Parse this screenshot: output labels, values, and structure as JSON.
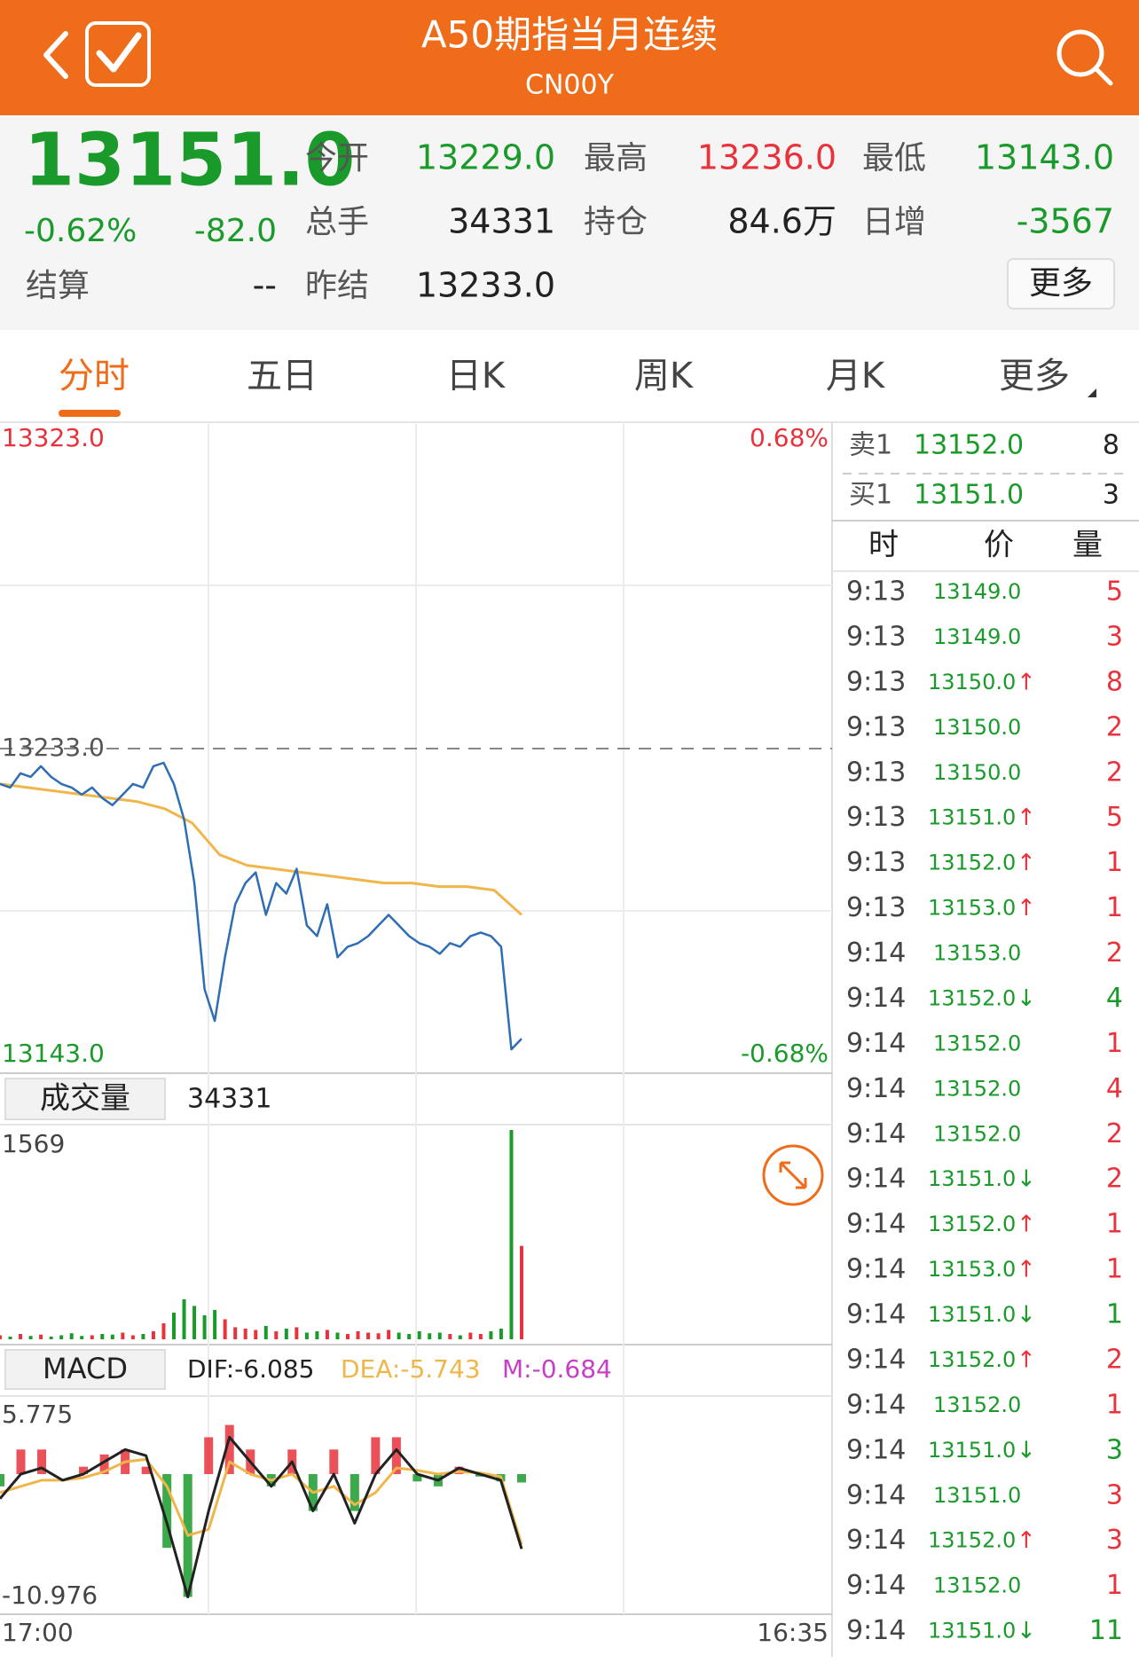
{
  "header": {
    "title": "A50期指当月连续",
    "code": "CN00Y"
  },
  "quote": {
    "price": "13151.0",
    "change_pct": "-0.62%",
    "change": "-82.0",
    "fields": [
      {
        "label": "今开",
        "value": "13229.0",
        "color": "#1a9a2a"
      },
      {
        "label": "最高",
        "value": "13236.0",
        "color": "#e8323c"
      },
      {
        "label": "最低",
        "value": "13143.0",
        "color": "#1a9a2a"
      },
      {
        "label": "总手",
        "value": "34331",
        "color": "#222222"
      },
      {
        "label": "持仓",
        "value": "84.6万",
        "color": "#222222"
      },
      {
        "label": "日增",
        "value": "-3567",
        "color": "#1a9a2a"
      },
      {
        "label": "结算",
        "value": "--",
        "color": "#222222"
      },
      {
        "label": "昨结",
        "value": "13233.0",
        "color": "#222222"
      }
    ],
    "more": "更多"
  },
  "tabs": [
    "分时",
    "五日",
    "日K",
    "周K",
    "月K",
    "更多"
  ],
  "order_book": [
    {
      "label": "卖1",
      "price": "13152.0",
      "volume": "8"
    },
    {
      "label": "买1",
      "price": "13151.0",
      "volume": "3"
    }
  ],
  "trades": {
    "headers": [
      "时",
      "价",
      "量"
    ],
    "rows": [
      {
        "time": "9:13",
        "price": "13149.0",
        "volume": "5",
        "color": "#e8323c"
      },
      {
        "time": "9:13",
        "price": "13149.0",
        "volume": "3",
        "color": "#e8323c"
      },
      {
        "time": "9:13",
        "price": "13150.0",
        "arrow": "↑",
        "volume": "8",
        "color": "#e8323c"
      },
      {
        "time": "9:13",
        "price": "13150.0",
        "volume": "2",
        "color": "#e8323c"
      },
      {
        "time": "9:13",
        "price": "13150.0",
        "volume": "2",
        "color": "#e8323c"
      },
      {
        "time": "9:13",
        "price": "13151.0",
        "arrow": "↑",
        "volume": "5",
        "color": "#e8323c"
      },
      {
        "time": "9:13",
        "price": "13152.0",
        "arrow": "↑",
        "volume": "1",
        "color": "#e8323c"
      },
      {
        "time": "9:13",
        "price": "13153.0",
        "arrow": "↑",
        "volume": "1",
        "color": "#e8323c"
      },
      {
        "time": "9:14",
        "price": "13153.0",
        "volume": "2",
        "color": "#e8323c"
      },
      {
        "time": "9:14",
        "price": "13152.0",
        "arrow": "↓",
        "volume": "4",
        "color": "#1a9a2a"
      },
      {
        "time": "9:14",
        "price": "13152.0",
        "volume": "1",
        "color": "#e8323c"
      },
      {
        "time": "9:14",
        "price": "13152.0",
        "volume": "4",
        "color": "#e8323c"
      },
      {
        "time": "9:14",
        "price": "13152.0",
        "volume": "2",
        "color": "#e8323c"
      },
      {
        "time": "9:14",
        "price": "13151.0",
        "arrow": "↓",
        "volume": "2",
        "color": "#e8323c"
      },
      {
        "time": "9:14",
        "price": "13152.0",
        "arrow": "↑",
        "volume": "1",
        "color": "#e8323c"
      },
      {
        "time": "9:14",
        "price": "13153.0",
        "arrow": "↑",
        "volume": "1",
        "color": "#e8323c"
      },
      {
        "time": "9:14",
        "price": "13151.0",
        "arrow": "↓",
        "volume": "1",
        "color": "#1a9a2a"
      },
      {
        "time": "9:14",
        "price": "13152.0",
        "arrow": "↑",
        "volume": "2",
        "color": "#e8323c"
      },
      {
        "time": "9:14",
        "price": "13152.0",
        "volume": "1",
        "color": "#e8323c"
      },
      {
        "time": "9:14",
        "price": "13151.0",
        "arrow": "↓",
        "volume": "3",
        "color": "#1a9a2a"
      },
      {
        "time": "9:14",
        "price": "13151.0",
        "volume": "3",
        "color": "#e8323c"
      },
      {
        "time": "9:14",
        "price": "13152.0",
        "arrow": "↑",
        "volume": "3",
        "color": "#e8323c"
      },
      {
        "time": "9:14",
        "price": "13152.0",
        "volume": "1",
        "color": "#e8323c"
      },
      {
        "time": "9:14",
        "price": "13151.0",
        "arrow": "↓",
        "volume": "11",
        "color": "#1a9a2a"
      }
    ]
  },
  "chart_data": [
    {
      "type": "line",
      "ylim": [
        13143,
        13323
      ],
      "yticks": [
        {
          "value": 13143,
          "label": "13143.0"
        },
        {
          "value": 13233,
          "label": "13233.0"
        },
        {
          "value": 13323,
          "label": "13323.0"
        }
      ],
      "y2lim": [
        -0.68,
        0.68
      ],
      "y2ticks": [
        {
          "value": -0.68,
          "label": "-0.68%"
        },
        {
          "value": 0.68,
          "label": "0.68%"
        }
      ],
      "xticks": [
        "17:00",
        "16:35"
      ],
      "series": [
        {
          "color": "#2f6db5",
          "values": [
            13223,
            13222,
            13226,
            13225,
            13228,
            13225,
            13223,
            13222,
            13220,
            13222,
            13219,
            13217,
            13220,
            13223,
            13222,
            13228,
            13229,
            13223,
            13213,
            13195,
            13165,
            13156,
            13174,
            13189,
            13195,
            13198,
            13186,
            13195,
            13192,
            13199,
            13183,
            13180,
            13189,
            13174,
            13177,
            13178,
            13180,
            13183,
            13186,
            13183,
            13180,
            13178,
            13177,
            13175,
            13178,
            13177,
            13180,
            13181,
            13180,
            13177,
            13148,
            13151
          ]
        },
        {
          "color": "#f0b64a",
          "values": [
            13223,
            13222,
            13221,
            13220,
            13219,
            13218,
            13216,
            13212,
            13203,
            13200,
            13199,
            13198,
            13197,
            13196,
            13195,
            13195,
            13194,
            13194,
            13193,
            13186
          ]
        }
      ]
    },
    {
      "type": "bar",
      "title": "成交量",
      "total": 34331,
      "ylim": [
        0,
        1569
      ],
      "yticks": [
        1569
      ],
      "up_color": "#e8323c",
      "down_color": "#1a9a2a",
      "values": [
        30,
        20,
        40,
        25,
        35,
        20,
        30,
        45,
        25,
        30,
        40,
        35,
        50,
        30,
        40,
        60,
        120,
        200,
        300,
        250,
        180,
        220,
        150,
        90,
        80,
        70,
        100,
        60,
        80,
        90,
        50,
        60,
        70,
        50,
        40,
        60,
        50,
        45,
        70,
        50,
        40,
        60,
        45,
        50,
        40,
        30,
        50,
        40,
        60,
        80,
        1569,
        700
      ]
    },
    {
      "type": "macd",
      "title": "MACD",
      "ylim": [
        -10.976,
        5.775
      ],
      "yticks": [
        5.775,
        -10.976
      ],
      "series": [
        {
          "legend": "DIF:-6.085",
          "color": "#222222",
          "values": [
            -2,
            0,
            0.5,
            -0.5,
            0,
            1,
            2,
            1.5,
            -4,
            -10,
            -3,
            3,
            1,
            -1,
            1,
            -3,
            0,
            -4,
            0,
            2,
            0,
            -0.5,
            0.5,
            0,
            -0.5,
            -6.085
          ]
        },
        {
          "legend": "DEA:-5.743",
          "color": "#f0b64a",
          "values": [
            -1.5,
            -1,
            -0.5,
            -0.5,
            -0.3,
            0.2,
            1,
            1.2,
            -1,
            -5,
            -4.5,
            1,
            0,
            -0.5,
            0,
            -1.5,
            -1,
            -2.5,
            -1.5,
            0.5,
            0.3,
            0,
            0.2,
            0.1,
            -0.2,
            -5.743
          ]
        },
        {
          "legend": "M:-0.684",
          "color": "#c63fc6",
          "up_color": "#e8323c",
          "down_color": "#1a9a2a",
          "values": [
            -1,
            2,
            2,
            0,
            0.6,
            1.6,
            2,
            0.6,
            -6,
            -10,
            3,
            4,
            2,
            -1,
            2,
            -3,
            2,
            -3,
            3,
            3,
            -0.6,
            -1,
            0.6,
            -0.2,
            -0.6,
            -0.684
          ]
        }
      ]
    }
  ]
}
